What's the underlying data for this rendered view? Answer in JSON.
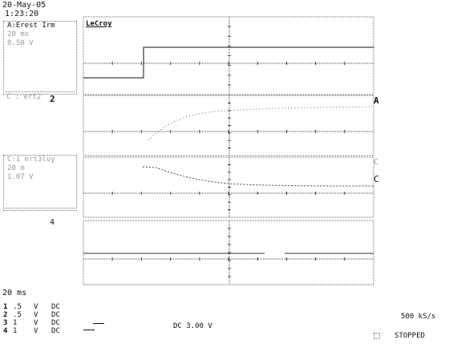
{
  "header": {
    "date": "20-May-05",
    "time": "1:23:20"
  },
  "brand": "LeCroy",
  "channels": [
    {
      "title": "A:Erest Irm",
      "line1": "20 ms",
      "line2": "0.50 V"
    },
    {
      "title": "C : ert2",
      "line1": "",
      "line2": ""
    },
    {
      "title": "C:1 ert3luy",
      "line1": "20 m",
      "line2": "1.07 V"
    },
    {
      "title": "4",
      "line1": "",
      "line2": ""
    }
  ],
  "markers": {
    "ref_A": "A",
    "ref_C1": "C",
    "ref_C2": "C"
  },
  "timebase": "20 ms",
  "channel_settings": [
    {
      "num": "1",
      "volts": ".5",
      "unit": "V",
      "coupling": "DC"
    },
    {
      "num": "2",
      "volts": ".5",
      "unit": "V",
      "coupling": "DC"
    },
    {
      "num": "3",
      "volts": "1",
      "unit": "V",
      "coupling": "DC"
    },
    {
      "num": "4",
      "volts": "1",
      "unit": "V",
      "coupling": "DC"
    }
  ],
  "trigger_text": "DC 3.00 V",
  "sample_rate": "500 kS/s",
  "status": "STOPPED"
}
